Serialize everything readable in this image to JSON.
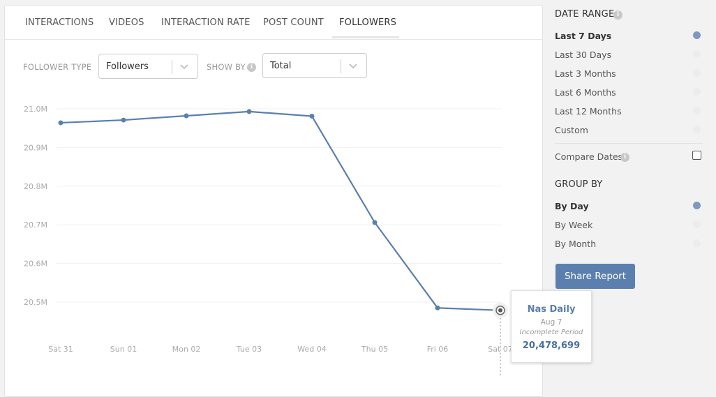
{
  "tabs": [
    {
      "label": "INTERACTIONS",
      "active": false
    },
    {
      "label": "VIDEOS",
      "active": false
    },
    {
      "label": "INTERACTION RATE",
      "active": false
    },
    {
      "label": "POST COUNT",
      "active": false
    },
    {
      "label": "FOLLOWERS",
      "active": true
    }
  ],
  "filters": {
    "follower_type_label": "FOLLOWER TYPE",
    "follower_type_value": "Followers",
    "show_by_label": "SHOW BY",
    "show_by_value": "Total"
  },
  "tooltip": {
    "name": "Nas Daily",
    "date": "Aug 7",
    "note": "Incomplete Period",
    "value": "20,478,699"
  },
  "sidebar": {
    "date_range_title": "DATE RANGE",
    "date_range_options": [
      {
        "label": "Last 7 Days",
        "selected": true
      },
      {
        "label": "Last 30 Days",
        "selected": false
      },
      {
        "label": "Last 3 Months",
        "selected": false
      },
      {
        "label": "Last 6 Months",
        "selected": false
      },
      {
        "label": "Last 12 Months",
        "selected": false
      },
      {
        "label": "Custom",
        "selected": false
      }
    ],
    "compare_dates_label": "Compare Dates",
    "compare_dates_checked": false,
    "group_by_title": "GROUP BY",
    "group_by_options": [
      {
        "label": "By Day",
        "selected": true
      },
      {
        "label": "By Week",
        "selected": false
      },
      {
        "label": "By Month",
        "selected": false
      }
    ],
    "share_button": "Share Report"
  },
  "colors": {
    "accent": "#5b7fae",
    "line": "#5b7fae",
    "radio_selected": "#7f98c2"
  },
  "chart_data": {
    "type": "line",
    "categories": [
      "Sat 31",
      "Sun 01",
      "Mon 02",
      "Tue 03",
      "Wed 04",
      "Thu 05",
      "Fri 06",
      "Sat 07"
    ],
    "series": [
      {
        "values": [
          20964000,
          20971000,
          20982000,
          20993000,
          20981000,
          20706000,
          20485000,
          20478699
        ]
      }
    ],
    "yticks": [
      "21.0M",
      "20.9M",
      "20.8M",
      "20.7M",
      "20.6M",
      "20.5M"
    ],
    "ytick_values": [
      21000000,
      20900000,
      20800000,
      20700000,
      20600000,
      20500000
    ],
    "ylim": [
      20450000,
      21000000
    ],
    "grid": true,
    "highlight_index": 7
  }
}
